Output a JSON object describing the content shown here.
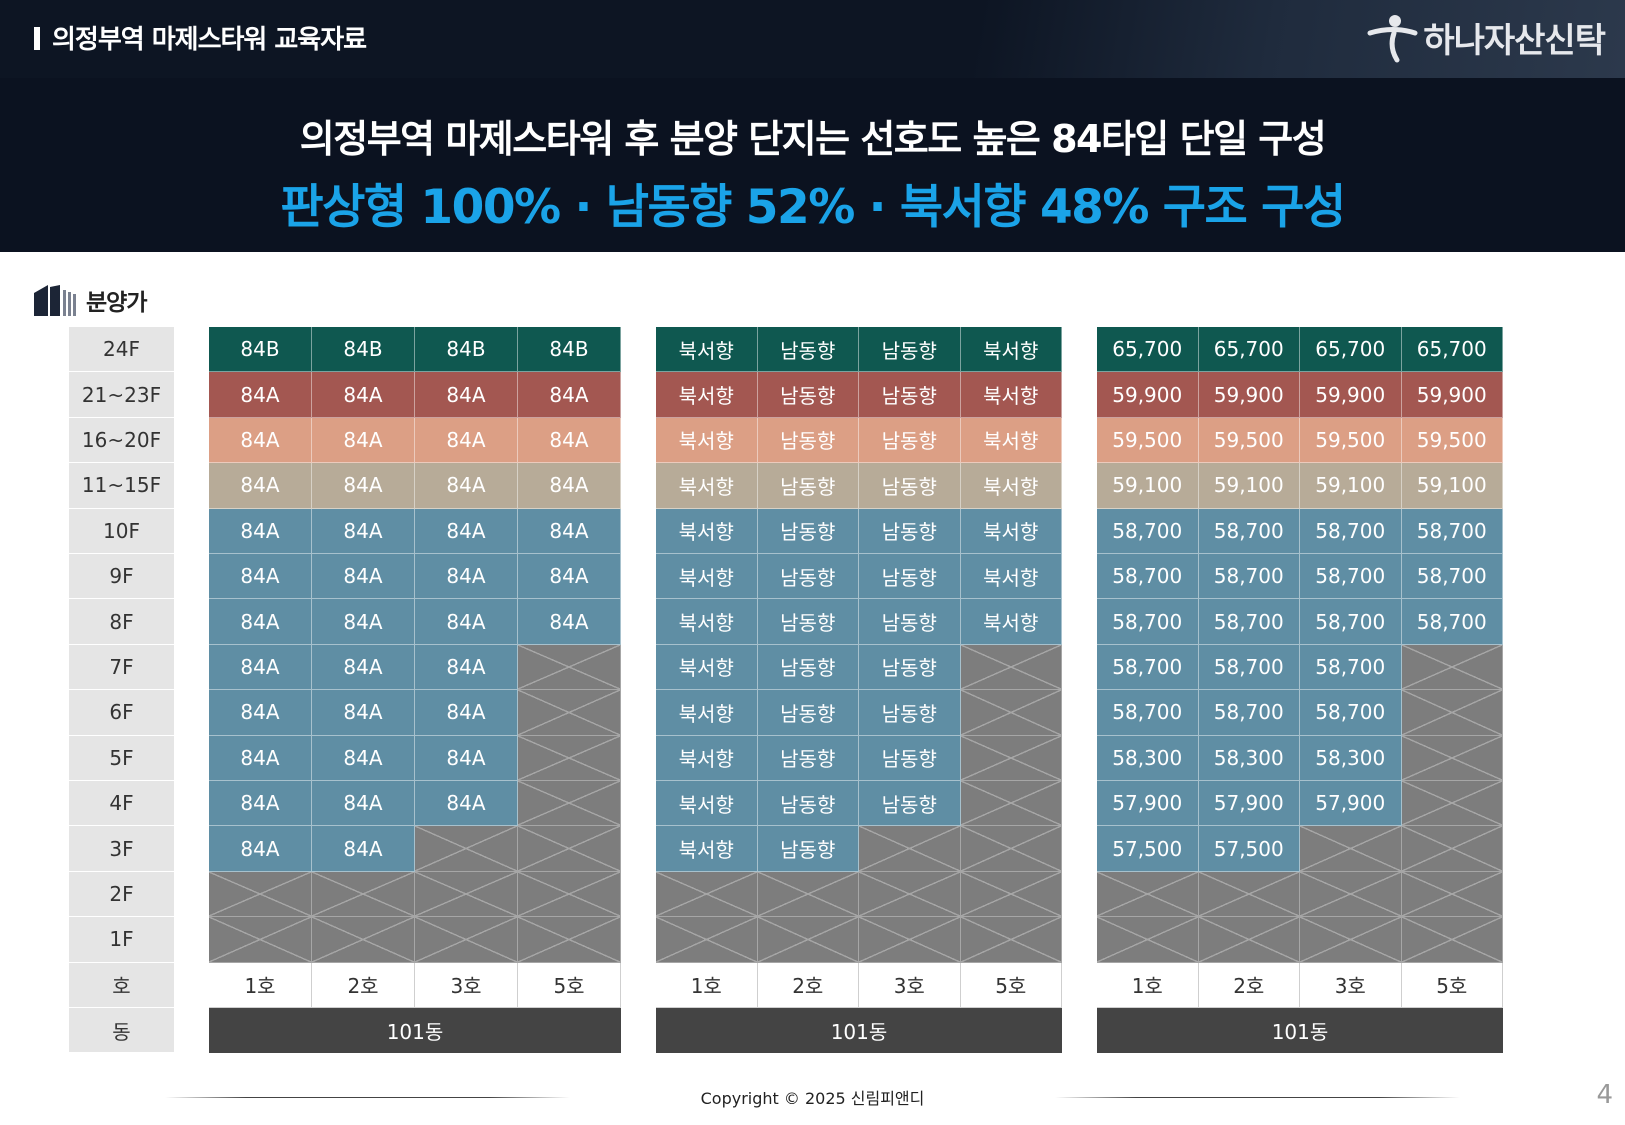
{
  "header": {
    "doc_label": "의정부역 마제스타워 교육자료",
    "brand": "하나자산신탁"
  },
  "banner": {
    "headline": "의정부역 마제스타워 후 분양 단지는 선호도 높은 84타입 단일 구성",
    "subheadline": "판상형 100% · 남동향 52% · 북서향 48% 구조 구성"
  },
  "section": {
    "title": "분양가",
    "icon": "building-icon"
  },
  "colors": {
    "b24": "#0f5850",
    "c2123": "#a35751",
    "c1620": "#dc9f85",
    "c1115": "#b7ab98",
    "c310": "#5f8ea4",
    "x": "#7d7d7d"
  },
  "floors": [
    "24F",
    "21~23F",
    "16~20F",
    "11~15F",
    "10F",
    "9F",
    "8F",
    "7F",
    "6F",
    "5F",
    "4F",
    "3F",
    "2F",
    "1F"
  ],
  "row_labels": {
    "unit": "호",
    "building": "동"
  },
  "units": [
    "1호",
    "2호",
    "3호",
    "5호"
  ],
  "building": "101동",
  "type_table": [
    [
      "84B",
      "84B",
      "84B",
      "84B"
    ],
    [
      "84A",
      "84A",
      "84A",
      "84A"
    ],
    [
      "84A",
      "84A",
      "84A",
      "84A"
    ],
    [
      "84A",
      "84A",
      "84A",
      "84A"
    ],
    [
      "84A",
      "84A",
      "84A",
      "84A"
    ],
    [
      "84A",
      "84A",
      "84A",
      "84A"
    ],
    [
      "84A",
      "84A",
      "84A",
      "84A"
    ],
    [
      "84A",
      "84A",
      "84A",
      null
    ],
    [
      "84A",
      "84A",
      "84A",
      null
    ],
    [
      "84A",
      "84A",
      "84A",
      null
    ],
    [
      "84A",
      "84A",
      "84A",
      null
    ],
    [
      "84A",
      "84A",
      null,
      null
    ],
    [
      null,
      null,
      null,
      null
    ],
    [
      null,
      null,
      null,
      null
    ]
  ],
  "direction_table": [
    [
      "북서향",
      "남동향",
      "남동향",
      "북서향"
    ],
    [
      "북서향",
      "남동향",
      "남동향",
      "북서향"
    ],
    [
      "북서향",
      "남동향",
      "남동향",
      "북서향"
    ],
    [
      "북서향",
      "남동향",
      "남동향",
      "북서향"
    ],
    [
      "북서향",
      "남동향",
      "남동향",
      "북서향"
    ],
    [
      "북서향",
      "남동향",
      "남동향",
      "북서향"
    ],
    [
      "북서향",
      "남동향",
      "남동향",
      "북서향"
    ],
    [
      "북서향",
      "남동향",
      "남동향",
      null
    ],
    [
      "북서향",
      "남동향",
      "남동향",
      null
    ],
    [
      "북서향",
      "남동향",
      "남동향",
      null
    ],
    [
      "북서향",
      "남동향",
      "남동향",
      null
    ],
    [
      "북서향",
      "남동향",
      null,
      null
    ],
    [
      null,
      null,
      null,
      null
    ],
    [
      null,
      null,
      null,
      null
    ]
  ],
  "price_table": [
    [
      "65,700",
      "65,700",
      "65,700",
      "65,700"
    ],
    [
      "59,900",
      "59,900",
      "59,900",
      "59,900"
    ],
    [
      "59,500",
      "59,500",
      "59,500",
      "59,500"
    ],
    [
      "59,100",
      "59,100",
      "59,100",
      "59,100"
    ],
    [
      "58,700",
      "58,700",
      "58,700",
      "58,700"
    ],
    [
      "58,700",
      "58,700",
      "58,700",
      "58,700"
    ],
    [
      "58,700",
      "58,700",
      "58,700",
      "58,700"
    ],
    [
      "58,700",
      "58,700",
      "58,700",
      null
    ],
    [
      "58,700",
      "58,700",
      "58,700",
      null
    ],
    [
      "58,300",
      "58,300",
      "58,300",
      null
    ],
    [
      "57,900",
      "57,900",
      "57,900",
      null
    ],
    [
      "57,500",
      "57,500",
      null,
      null
    ],
    [
      null,
      null,
      null,
      null
    ],
    [
      null,
      null,
      null,
      null
    ]
  ],
  "footer": {
    "copyright": "Copyright © 2025 신림피앤디",
    "page": "4"
  }
}
